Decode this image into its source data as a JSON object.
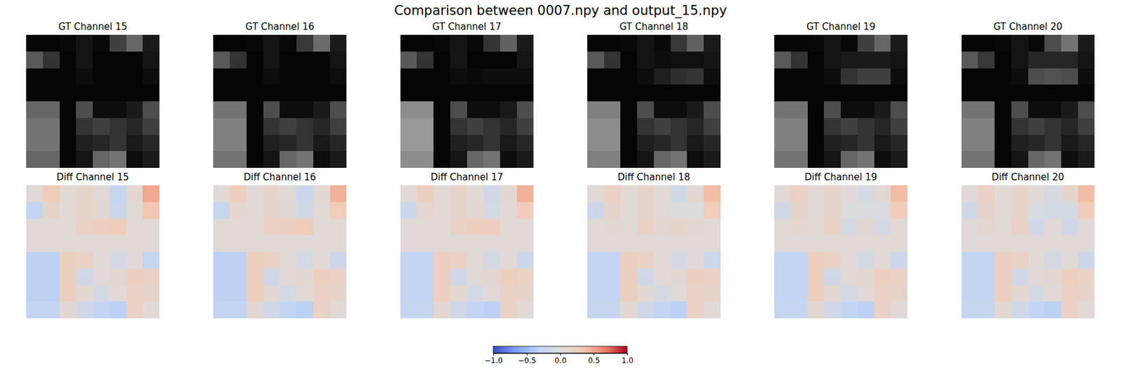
{
  "chart_data": {
    "type": "heatmap",
    "title": "Comparison between 0007.npy and output_15.npy",
    "tick_labels": false,
    "gt": {
      "color": "gray",
      "zlim": [
        0,
        1
      ],
      "panels": [
        {
          "title": "GT Channel 15",
          "cells": [
            [
              0.02,
              0.02,
              0.03,
              0.08,
              0.03,
              0.25,
              0.4,
              0.1
            ],
            [
              0.35,
              0.2,
              0.02,
              0.08,
              0.02,
              0.02,
              0.02,
              0.08
            ],
            [
              0.02,
              0.02,
              0.02,
              0.05,
              0.02,
              0.02,
              0.02,
              0.05
            ],
            [
              0.02,
              0.02,
              0.02,
              0.02,
              0.02,
              0.02,
              0.02,
              0.02
            ],
            [
              0.4,
              0.4,
              0.02,
              0.3,
              0.05,
              0.05,
              0.1,
              0.3
            ],
            [
              0.45,
              0.45,
              0.02,
              0.2,
              0.25,
              0.2,
              0.15,
              0.25
            ],
            [
              0.45,
              0.45,
              0.02,
              0.12,
              0.15,
              0.2,
              0.1,
              0.15
            ],
            [
              0.4,
              0.4,
              0.02,
              0.08,
              0.4,
              0.45,
              0.05,
              0.1
            ]
          ]
        },
        {
          "title": "GT Channel 16",
          "cells": [
            [
              0.02,
              0.02,
              0.03,
              0.08,
              0.03,
              0.22,
              0.42,
              0.1
            ],
            [
              0.35,
              0.2,
              0.02,
              0.08,
              0.02,
              0.02,
              0.02,
              0.08
            ],
            [
              0.02,
              0.02,
              0.02,
              0.05,
              0.02,
              0.02,
              0.02,
              0.05
            ],
            [
              0.02,
              0.02,
              0.02,
              0.02,
              0.02,
              0.02,
              0.02,
              0.02
            ],
            [
              0.45,
              0.45,
              0.02,
              0.3,
              0.05,
              0.05,
              0.1,
              0.3
            ],
            [
              0.5,
              0.5,
              0.02,
              0.2,
              0.25,
              0.2,
              0.15,
              0.25
            ],
            [
              0.5,
              0.5,
              0.02,
              0.12,
              0.15,
              0.2,
              0.1,
              0.15
            ],
            [
              0.45,
              0.45,
              0.02,
              0.08,
              0.4,
              0.45,
              0.05,
              0.1
            ]
          ]
        },
        {
          "title": "GT Channel 17",
          "cells": [
            [
              0.02,
              0.02,
              0.03,
              0.08,
              0.03,
              0.2,
              0.38,
              0.1
            ],
            [
              0.35,
              0.2,
              0.02,
              0.08,
              0.02,
              0.02,
              0.02,
              0.08
            ],
            [
              0.02,
              0.02,
              0.02,
              0.05,
              0.04,
              0.05,
              0.05,
              0.05
            ],
            [
              0.02,
              0.02,
              0.02,
              0.02,
              0.02,
              0.02,
              0.02,
              0.02
            ],
            [
              0.55,
              0.55,
              0.02,
              0.3,
              0.05,
              0.05,
              0.1,
              0.3
            ],
            [
              0.6,
              0.6,
              0.02,
              0.2,
              0.25,
              0.2,
              0.15,
              0.25
            ],
            [
              0.6,
              0.6,
              0.02,
              0.12,
              0.15,
              0.2,
              0.1,
              0.15
            ],
            [
              0.55,
              0.55,
              0.02,
              0.08,
              0.4,
              0.45,
              0.05,
              0.1
            ]
          ]
        },
        {
          "title": "GT Channel 18",
          "cells": [
            [
              0.02,
              0.02,
              0.03,
              0.08,
              0.03,
              0.22,
              0.38,
              0.1
            ],
            [
              0.35,
              0.2,
              0.02,
              0.08,
              0.05,
              0.06,
              0.06,
              0.08
            ],
            [
              0.02,
              0.02,
              0.02,
              0.05,
              0.12,
              0.18,
              0.2,
              0.05
            ],
            [
              0.02,
              0.02,
              0.02,
              0.02,
              0.02,
              0.02,
              0.02,
              0.02
            ],
            [
              0.5,
              0.5,
              0.02,
              0.3,
              0.05,
              0.05,
              0.1,
              0.3
            ],
            [
              0.55,
              0.55,
              0.02,
              0.2,
              0.25,
              0.2,
              0.15,
              0.25
            ],
            [
              0.55,
              0.55,
              0.02,
              0.12,
              0.15,
              0.2,
              0.1,
              0.15
            ],
            [
              0.5,
              0.5,
              0.02,
              0.08,
              0.4,
              0.45,
              0.05,
              0.1
            ]
          ]
        },
        {
          "title": "GT Channel 19",
          "cells": [
            [
              0.02,
              0.02,
              0.03,
              0.08,
              0.03,
              0.25,
              0.4,
              0.1
            ],
            [
              0.35,
              0.2,
              0.02,
              0.08,
              0.1,
              0.1,
              0.1,
              0.08
            ],
            [
              0.02,
              0.02,
              0.02,
              0.05,
              0.2,
              0.25,
              0.25,
              0.05
            ],
            [
              0.02,
              0.02,
              0.02,
              0.02,
              0.02,
              0.02,
              0.02,
              0.02
            ],
            [
              0.45,
              0.45,
              0.02,
              0.3,
              0.05,
              0.05,
              0.1,
              0.3
            ],
            [
              0.5,
              0.5,
              0.02,
              0.2,
              0.25,
              0.2,
              0.15,
              0.25
            ],
            [
              0.5,
              0.5,
              0.02,
              0.12,
              0.15,
              0.2,
              0.1,
              0.15
            ],
            [
              0.45,
              0.45,
              0.02,
              0.08,
              0.4,
              0.45,
              0.05,
              0.1
            ]
          ]
        },
        {
          "title": "GT Channel 20",
          "cells": [
            [
              0.02,
              0.02,
              0.03,
              0.08,
              0.03,
              0.3,
              0.45,
              0.1
            ],
            [
              0.35,
              0.22,
              0.02,
              0.08,
              0.15,
              0.15,
              0.15,
              0.08
            ],
            [
              0.02,
              0.02,
              0.02,
              0.05,
              0.3,
              0.32,
              0.3,
              0.05
            ],
            [
              0.02,
              0.02,
              0.02,
              0.02,
              0.02,
              0.02,
              0.02,
              0.02
            ],
            [
              0.45,
              0.45,
              0.02,
              0.3,
              0.05,
              0.05,
              0.1,
              0.3
            ],
            [
              0.5,
              0.5,
              0.02,
              0.2,
              0.25,
              0.2,
              0.15,
              0.25
            ],
            [
              0.5,
              0.5,
              0.02,
              0.12,
              0.15,
              0.2,
              0.1,
              0.15
            ],
            [
              0.45,
              0.45,
              0.02,
              0.08,
              0.4,
              0.45,
              0.05,
              0.1
            ]
          ]
        }
      ]
    },
    "diff": {
      "color": "coolwarm",
      "panels": [
        {
          "title": "Diff Channel 15",
          "cells": [
            [
              0.05,
              0.3,
              0.05,
              0.15,
              0.05,
              -0.25,
              0.1,
              0.5
            ],
            [
              -0.3,
              0.15,
              0.05,
              0.15,
              0.1,
              -0.2,
              0.05,
              0.35
            ],
            [
              0.05,
              0.05,
              0.05,
              0.2,
              0.25,
              0.3,
              0.05,
              0.05
            ],
            [
              0.05,
              0.05,
              0.05,
              0.05,
              0.05,
              0.05,
              0.05,
              0.05
            ],
            [
              -0.35,
              -0.35,
              0.25,
              0.2,
              0.05,
              -0.1,
              0.05,
              -0.25
            ],
            [
              -0.35,
              -0.35,
              0.25,
              -0.15,
              0.05,
              0.1,
              0.25,
              0.2
            ],
            [
              -0.35,
              -0.35,
              0.25,
              0.1,
              -0.1,
              0.05,
              0.2,
              0.15
            ],
            [
              -0.3,
              -0.3,
              0.1,
              -0.15,
              -0.3,
              -0.35,
              0.2,
              0.05
            ]
          ]
        },
        {
          "title": "Diff Channel 16",
          "cells": [
            [
              0.05,
              0.28,
              0.05,
              0.15,
              0.05,
              -0.2,
              0.1,
              0.45
            ],
            [
              -0.25,
              0.12,
              0.05,
              0.15,
              0.1,
              -0.15,
              0.05,
              0.3
            ],
            [
              0.05,
              0.05,
              0.05,
              0.2,
              0.25,
              0.3,
              0.05,
              0.05
            ],
            [
              0.05,
              0.05,
              0.05,
              0.05,
              0.05,
              0.05,
              0.05,
              0.05
            ],
            [
              -0.35,
              -0.35,
              0.25,
              0.2,
              0.05,
              -0.1,
              0.05,
              -0.2
            ],
            [
              -0.35,
              -0.35,
              0.25,
              -0.15,
              0.05,
              0.1,
              0.25,
              0.2
            ],
            [
              -0.35,
              -0.35,
              0.25,
              0.1,
              -0.1,
              0.05,
              0.2,
              0.15
            ],
            [
              -0.3,
              -0.3,
              0.1,
              -0.15,
              -0.3,
              -0.35,
              0.2,
              0.05
            ]
          ]
        },
        {
          "title": "Diff Channel 17",
          "cells": [
            [
              0.05,
              0.25,
              0.05,
              0.15,
              0.05,
              -0.15,
              0.1,
              0.45
            ],
            [
              -0.2,
              0.12,
              0.05,
              0.15,
              0.1,
              -0.1,
              0.05,
              0.3
            ],
            [
              0.05,
              0.05,
              0.05,
              0.2,
              0.25,
              0.28,
              0.05,
              0.05
            ],
            [
              0.05,
              0.05,
              0.05,
              0.05,
              0.05,
              0.05,
              0.05,
              0.05
            ],
            [
              -0.3,
              -0.3,
              0.25,
              0.2,
              0.05,
              -0.1,
              0.05,
              -0.2
            ],
            [
              -0.3,
              -0.3,
              0.25,
              -0.15,
              0.05,
              0.1,
              0.25,
              0.2
            ],
            [
              -0.3,
              -0.3,
              0.25,
              0.1,
              -0.1,
              0.05,
              0.2,
              0.15
            ],
            [
              -0.25,
              -0.25,
              0.1,
              -0.15,
              -0.3,
              -0.35,
              0.2,
              0.05
            ]
          ]
        },
        {
          "title": "Diff Channel 18",
          "cells": [
            [
              0.05,
              0.22,
              0.05,
              0.15,
              0.05,
              -0.15,
              0.1,
              0.4
            ],
            [
              -0.2,
              0.15,
              0.05,
              0.15,
              0.05,
              0.0,
              0.0,
              0.3
            ],
            [
              0.05,
              0.1,
              0.05,
              0.2,
              0.1,
              0.15,
              0.1,
              0.05
            ],
            [
              0.05,
              0.05,
              0.05,
              0.05,
              0.05,
              0.05,
              0.05,
              0.05
            ],
            [
              -0.3,
              -0.3,
              0.25,
              0.2,
              0.05,
              -0.1,
              0.05,
              -0.2
            ],
            [
              -0.3,
              -0.3,
              0.25,
              -0.15,
              0.05,
              0.1,
              0.25,
              0.2
            ],
            [
              -0.3,
              -0.3,
              0.25,
              0.1,
              -0.1,
              0.05,
              0.2,
              0.15
            ],
            [
              -0.25,
              -0.25,
              0.1,
              -0.15,
              -0.3,
              -0.35,
              0.2,
              0.05
            ]
          ]
        },
        {
          "title": "Diff Channel 19",
          "cells": [
            [
              0.05,
              0.2,
              0.05,
              0.15,
              0.05,
              -0.1,
              0.1,
              0.4
            ],
            [
              -0.15,
              0.15,
              0.05,
              0.15,
              0.0,
              -0.05,
              -0.05,
              0.3
            ],
            [
              0.05,
              0.12,
              0.05,
              0.2,
              -0.1,
              0.1,
              -0.1,
              0.05
            ],
            [
              0.05,
              0.05,
              0.05,
              0.05,
              0.05,
              0.05,
              0.05,
              0.05
            ],
            [
              -0.3,
              -0.3,
              0.25,
              0.2,
              0.05,
              -0.1,
              0.05,
              -0.2
            ],
            [
              -0.3,
              -0.3,
              0.25,
              -0.15,
              0.05,
              0.1,
              0.25,
              0.2
            ],
            [
              -0.3,
              -0.3,
              0.25,
              0.1,
              -0.1,
              0.05,
              0.2,
              0.15
            ],
            [
              -0.25,
              -0.25,
              0.1,
              -0.15,
              -0.3,
              -0.35,
              0.2,
              0.05
            ]
          ]
        },
        {
          "title": "Diff Channel 20",
          "cells": [
            [
              0.05,
              0.2,
              0.05,
              0.15,
              0.05,
              -0.1,
              0.15,
              0.4
            ],
            [
              -0.15,
              0.15,
              0.05,
              0.15,
              -0.05,
              -0.1,
              -0.1,
              0.3
            ],
            [
              0.05,
              0.12,
              0.05,
              0.2,
              -0.15,
              0.05,
              -0.15,
              0.05
            ],
            [
              0.05,
              0.05,
              0.05,
              0.05,
              0.05,
              0.05,
              0.05,
              0.05
            ],
            [
              -0.3,
              -0.3,
              0.25,
              0.2,
              0.05,
              -0.1,
              0.05,
              -0.2
            ],
            [
              -0.3,
              -0.3,
              0.25,
              -0.15,
              0.05,
              0.1,
              0.25,
              0.2
            ],
            [
              -0.3,
              -0.3,
              0.25,
              0.1,
              -0.1,
              0.05,
              0.2,
              0.15
            ],
            [
              -0.25,
              -0.25,
              0.1,
              -0.15,
              -0.3,
              -0.35,
              0.2,
              0.05
            ]
          ]
        }
      ]
    },
    "colorbar": {
      "range": [
        -1,
        1
      ],
      "ticks": [
        {
          "value": -1,
          "label": "−1.0"
        },
        {
          "value": -0.5,
          "label": "−0.5"
        },
        {
          "value": 0,
          "label": "0.0"
        },
        {
          "value": 0.5,
          "label": "0.5"
        },
        {
          "value": 1,
          "label": "1.0"
        }
      ]
    }
  }
}
